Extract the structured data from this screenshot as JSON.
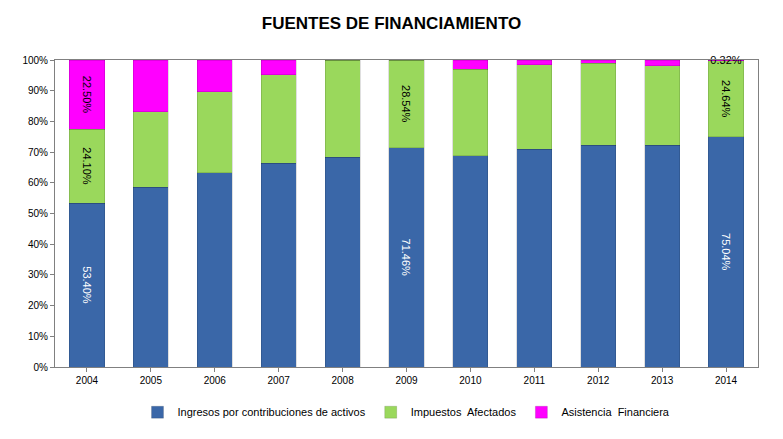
{
  "chart_data": {
    "type": "bar",
    "title": "FUENTES DE FINANCIAMIENTO",
    "categories": [
      "2004",
      "2005",
      "2006",
      "2007",
      "2008",
      "2009",
      "2010",
      "2011",
      "2012",
      "2013",
      "2014"
    ],
    "stacked": true,
    "data_labels": true,
    "grid": false,
    "legend": "bottom",
    "ylim": [
      0,
      100
    ],
    "yticks": [
      {
        "value": 0,
        "label": "0%"
      },
      {
        "value": 10,
        "label": "10%"
      },
      {
        "value": 20,
        "label": "20%"
      },
      {
        "value": 30,
        "label": "30%"
      },
      {
        "value": 40,
        "label": "40%"
      },
      {
        "value": 50,
        "label": "50%"
      },
      {
        "value": 60,
        "label": "60%"
      },
      {
        "value": 70,
        "label": "70%"
      },
      {
        "value": 80,
        "label": "80%"
      },
      {
        "value": 90,
        "label": "90%"
      },
      {
        "value": 100,
        "label": "100%"
      }
    ],
    "series": [
      {
        "name": "Ingresos por contribuciones de activos",
        "color": "#3a67a8",
        "values": [
          53.4,
          58.5,
          63.3,
          66.3,
          68.3,
          71.46,
          68.8,
          71.0,
          72.2,
          72.3,
          75.04
        ],
        "value_labels": [
          "53.40%",
          null,
          null,
          null,
          null,
          "71.46%",
          null,
          null,
          null,
          null,
          "75.04%"
        ]
      },
      {
        "name": "Impuestos  Afectados",
        "color": "#9ad85c",
        "values": [
          24.1,
          24.7,
          26.4,
          28.9,
          31.7,
          28.54,
          28.2,
          27.5,
          26.7,
          25.9,
          24.64
        ],
        "value_labels": [
          "24.10%",
          null,
          null,
          null,
          null,
          "28.54%",
          null,
          null,
          null,
          null,
          "24.64%"
        ]
      },
      {
        "name": "Asistencia  Financiera",
        "color": "#ff00ff",
        "values": [
          22.5,
          16.8,
          10.3,
          4.8,
          0,
          0,
          3.0,
          1.5,
          1.1,
          1.8,
          0.32
        ],
        "value_labels": [
          "22.50%",
          null,
          null,
          null,
          null,
          null,
          null,
          null,
          null,
          null,
          "0.32%"
        ]
      }
    ]
  }
}
